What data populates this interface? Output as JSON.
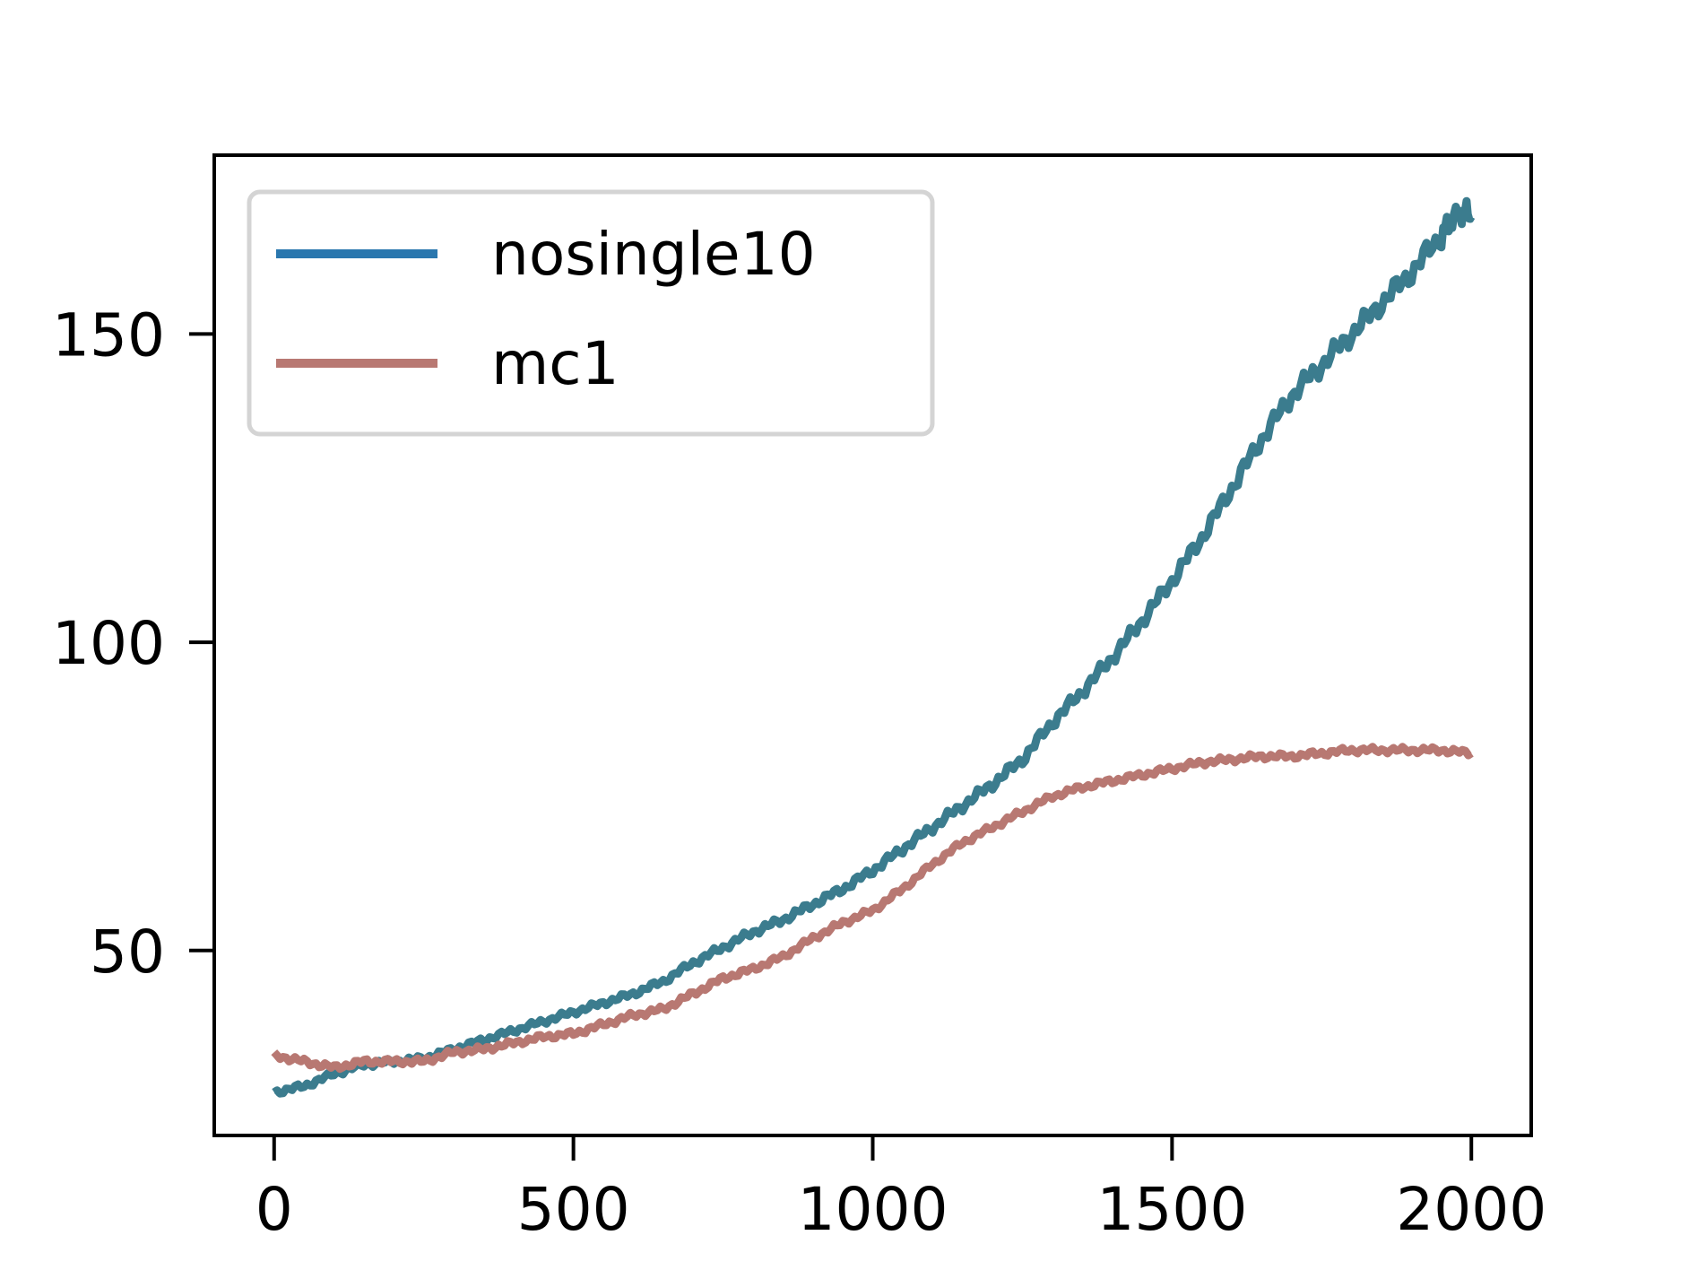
{
  "chart_data": {
    "type": "line",
    "title": "",
    "xlabel": "",
    "ylabel": "",
    "xlim": [
      -100,
      2100
    ],
    "ylim": [
      20,
      179
    ],
    "xticks": [
      0,
      500,
      1000,
      1500,
      2000
    ],
    "yticks": [
      50,
      100,
      150
    ],
    "legend": {
      "placement": "top-left"
    },
    "grid": false,
    "series": [
      {
        "name": "nosingle10",
        "color": "#3b7c8e",
        "legend_color": "#2a77ae",
        "x": [
          0,
          50,
          100,
          150,
          200,
          250,
          300,
          350,
          400,
          450,
          500,
          550,
          600,
          650,
          700,
          750,
          800,
          850,
          900,
          950,
          1000,
          1050,
          1100,
          1150,
          1200,
          1250,
          1300,
          1350,
          1400,
          1450,
          1500,
          1550,
          1600,
          1650,
          1700,
          1750,
          1800,
          1850,
          1900,
          1950,
          1980,
          2000
        ],
        "y": [
          27,
          28,
          30,
          31.5,
          32,
          32.5,
          34,
          35.5,
          37,
          38.5,
          40,
          41.5,
          43,
          45,
          48,
          50.5,
          53,
          55,
          57.5,
          60,
          63,
          66.5,
          70,
          73.5,
          77,
          81,
          87,
          92,
          97.5,
          103.5,
          110,
          117,
          125,
          133,
          140,
          145,
          150,
          155,
          160,
          166,
          170,
          169
        ]
      },
      {
        "name": "mc1",
        "color": "#b87872",
        "legend_color": "#b87872",
        "x": [
          0,
          50,
          100,
          150,
          200,
          250,
          300,
          350,
          400,
          450,
          500,
          550,
          600,
          650,
          700,
          750,
          800,
          850,
          900,
          950,
          1000,
          1050,
          1100,
          1150,
          1200,
          1250,
          1300,
          1350,
          1400,
          1450,
          1500,
          1550,
          1600,
          1650,
          1700,
          1750,
          1800,
          1850,
          1900,
          1950,
          2000
        ],
        "y": [
          33,
          32,
          31,
          32,
          32,
          32,
          33.5,
          34,
          35,
          36,
          36.5,
          38,
          39.5,
          40.5,
          43,
          45.5,
          47,
          49,
          52,
          54.5,
          56.5,
          60,
          64,
          67.5,
          70,
          72.5,
          75,
          76.5,
          77.5,
          78.5,
          79.5,
          80.5,
          81,
          81.5,
          81.5,
          82,
          82.5,
          82.5,
          82.5,
          82.5,
          82
        ]
      }
    ]
  }
}
